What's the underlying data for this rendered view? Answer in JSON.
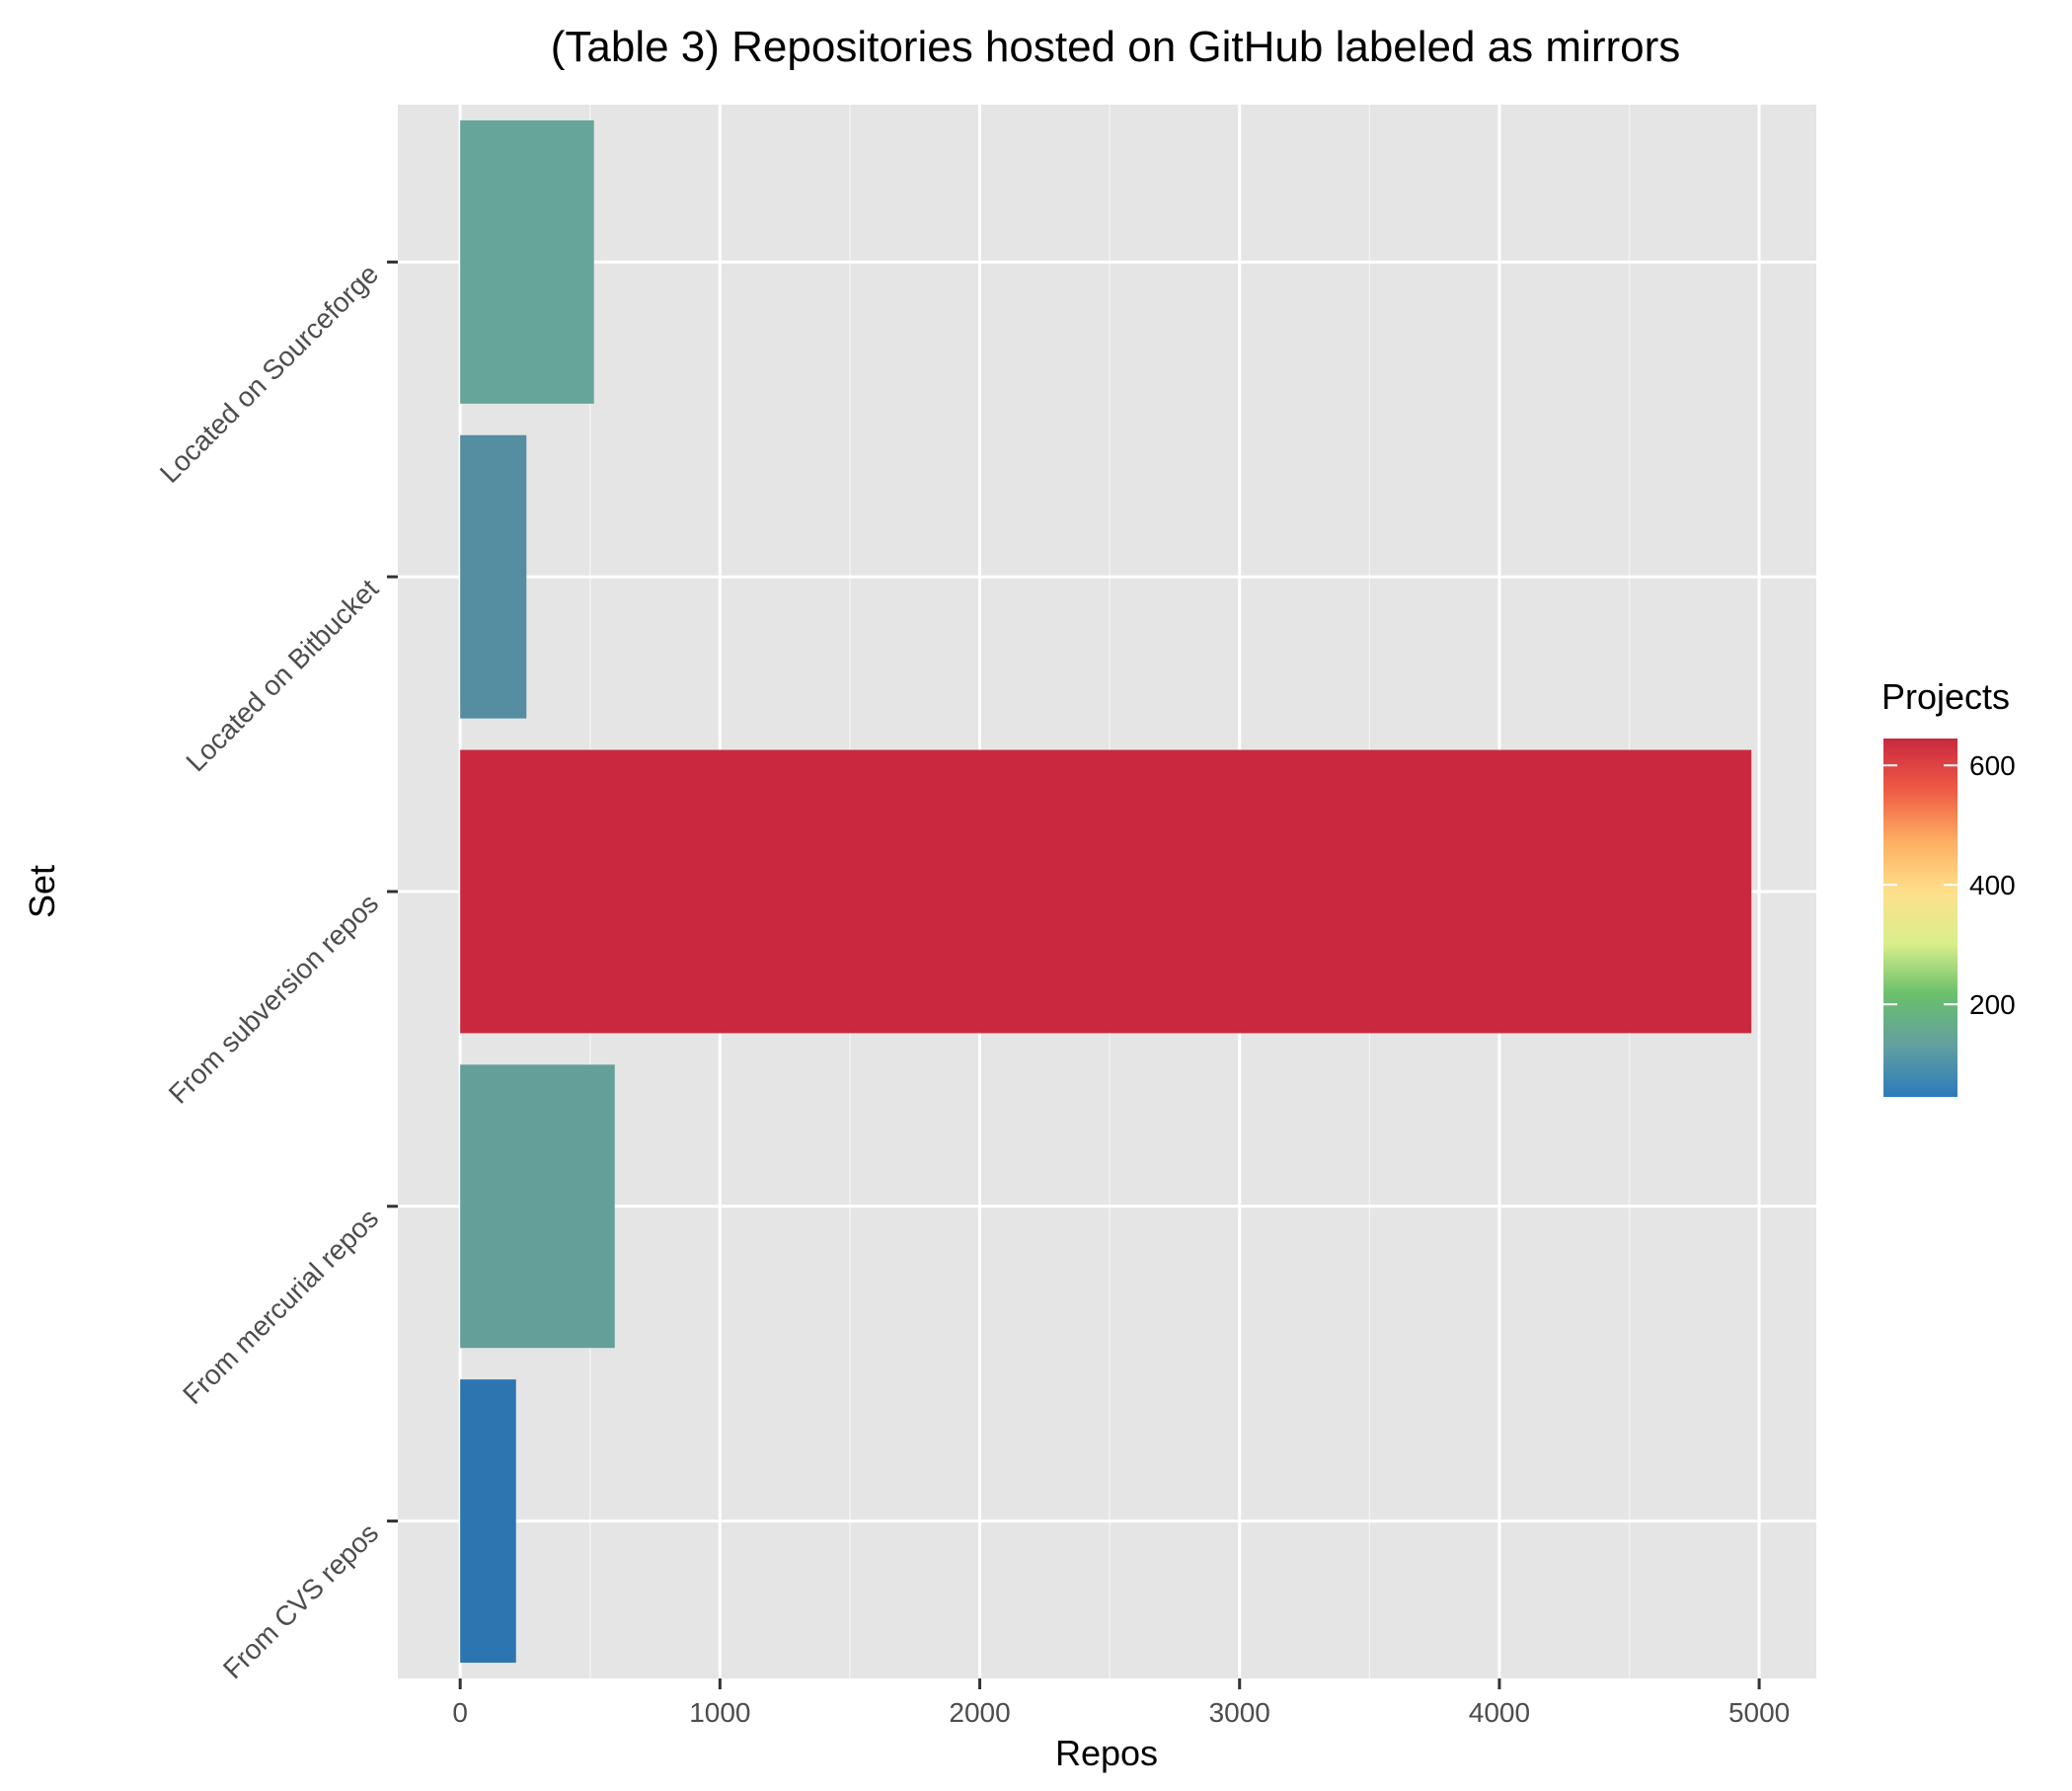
{
  "chart_data": {
    "type": "bar",
    "orientation": "horizontal",
    "title": "(Table 3) Repositories hosted on GitHub labeled as mirrors",
    "xlabel": "Repos",
    "ylabel": "Set",
    "categories": [
      "Located on Sourceforge",
      "Located on Bitbucket",
      "From subversion repos",
      "From mercurial repos",
      "From CVS repos"
    ],
    "values": [
      515,
      255,
      4970,
      595,
      215
    ],
    "projects": [
      170,
      110,
      640,
      165,
      50
    ],
    "bar_colors": [
      "#66a59a",
      "#548ea0",
      "#c9283f",
      "#649f99",
      "#2c75b1"
    ],
    "xlim": [
      -240,
      5220
    ],
    "xticks": [
      0,
      1000,
      2000,
      3000,
      4000,
      5000
    ],
    "grid": true,
    "legend": {
      "title": "Projects",
      "position": "right",
      "range": [
        45,
        645
      ],
      "ticks": [
        200,
        400,
        600
      ],
      "colors": [
        "#2b7bba",
        "#62a0a1",
        "#6abf6b",
        "#d9ef8b",
        "#fee08b",
        "#fdae61",
        "#ef5a45",
        "#c9283f"
      ]
    }
  }
}
